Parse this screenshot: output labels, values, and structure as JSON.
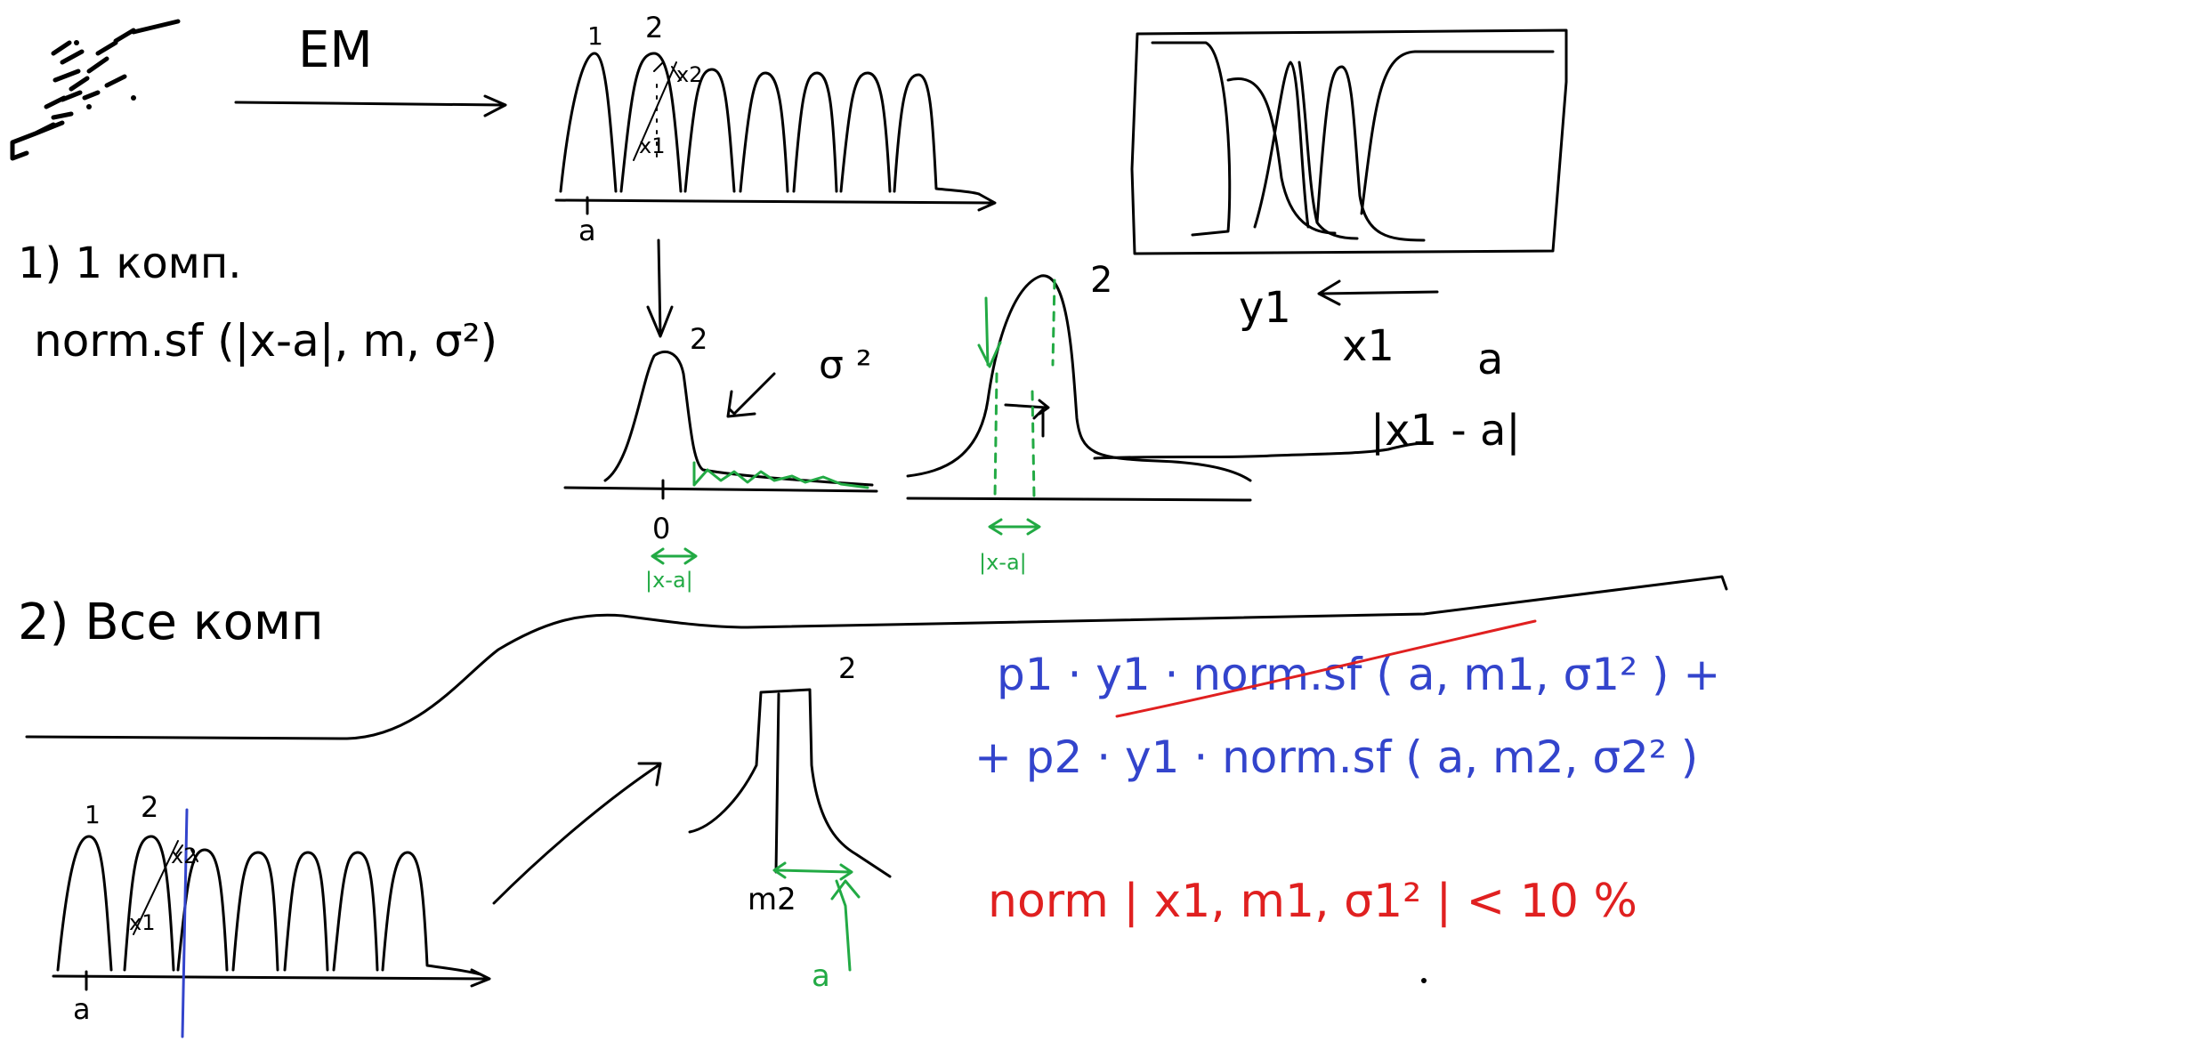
{
  "canvas": {
    "background": "#ffffff"
  },
  "colors": {
    "ink": "#000000",
    "green": "#22aa44",
    "blue": "#3344cc",
    "red": "#e02020"
  },
  "top": {
    "em_label": "EM",
    "hist_labels": {
      "first": "1",
      "second": "2",
      "x2": "x2",
      "x1": "x1",
      "a": "a"
    },
    "step1": {
      "heading": "1) 1 комп.",
      "formula": "norm.sf (|x-a|, m, σ²)"
    },
    "peak": {
      "label": "2",
      "sigma": "σ ²",
      "zero": "0",
      "dist": "|x-a|"
    },
    "peak2": {
      "label": "2",
      "dist": "|x-a|"
    },
    "right": {
      "y1": "y1",
      "x1": "x1",
      "a": "a",
      "absdiff": "|x1 - a|"
    }
  },
  "bottom": {
    "step2": "2) Все комп",
    "hist_labels": {
      "first": "1",
      "second": "2",
      "x2": "x2",
      "x1": "x1",
      "a": "a"
    },
    "peak": {
      "label": "2",
      "m2": "m2",
      "a": "a"
    },
    "formula_line1": "p1 · y1 · norm.sf ( a, m1, σ1² ) +",
    "formula_line2": "+ p2 · y1 · norm.sf ( a, m2, σ2² )",
    "red_condition": "norm  | x1,  m1,   σ1² | < 10 %"
  }
}
